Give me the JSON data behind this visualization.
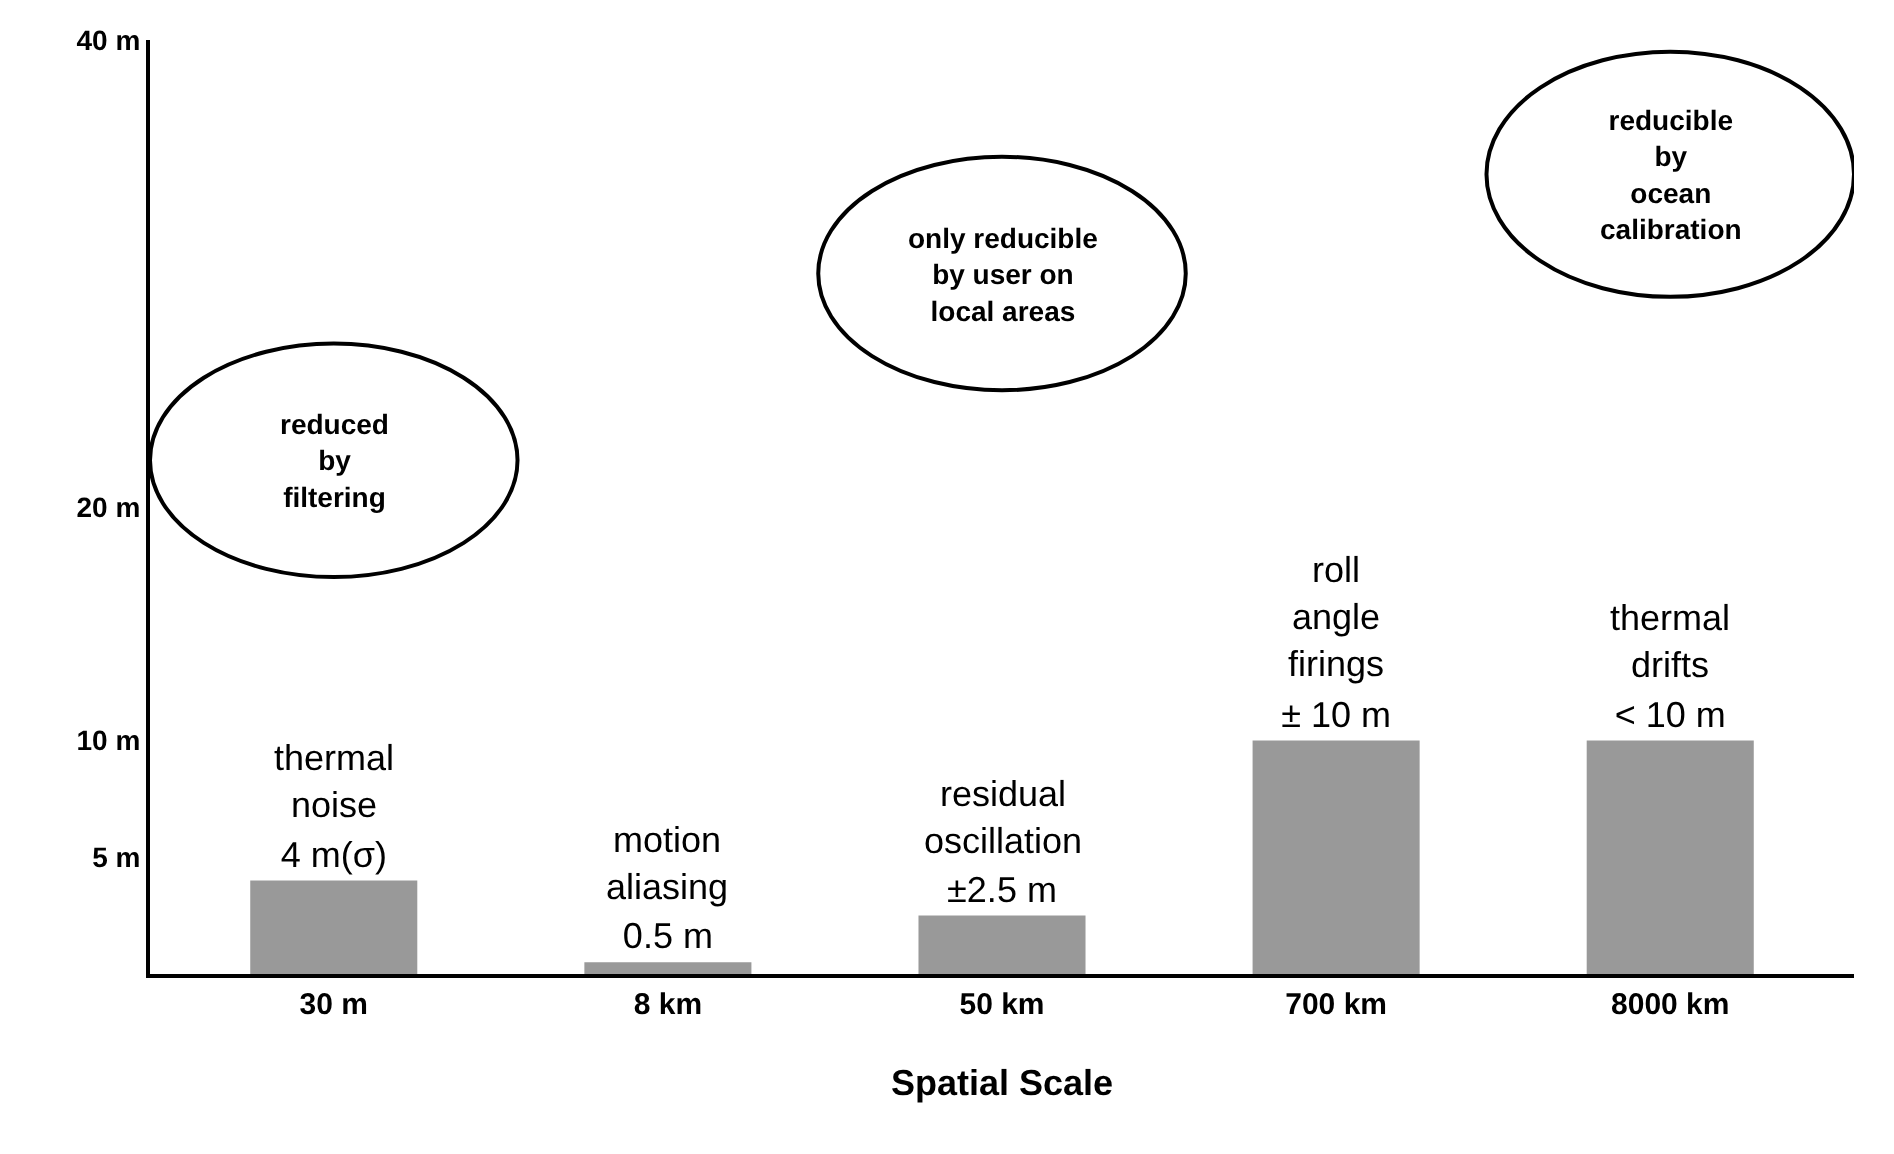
{
  "chart_data": {
    "type": "bar",
    "xlabel": "Spatial Scale",
    "categories": [
      "30 m",
      "8 km",
      "50 km",
      "700 km",
      "8000 km"
    ],
    "values": [
      4,
      0.5,
      2.5,
      10,
      10
    ],
    "value_labels": [
      "4 m(σ)",
      "0.5 m",
      "±2.5 m",
      "± 10 m",
      "< 10 m"
    ],
    "color": "#999999",
    "ylim": [
      0,
      40
    ],
    "yticks": [
      {
        "value": 5,
        "label": "5 m"
      },
      {
        "value": 10,
        "label": "10 m"
      },
      {
        "value": 20,
        "label": "20 m"
      },
      {
        "value": 40,
        "label": "40 m"
      }
    ],
    "grid": false,
    "legend": false,
    "annotations": [
      {
        "text": "thermal\nnoise",
        "x": "30 m",
        "y": 4
      },
      {
        "text": "motion\naliasing",
        "x": "8 km",
        "y": 0.5
      },
      {
        "text": "residual\noscillation",
        "x": "50 km",
        "y": 2.5
      },
      {
        "text": "roll\nangle\nfirings",
        "x": "700 km",
        "y": 10
      },
      {
        "text": "thermal\ndrifts",
        "x": "8000 km",
        "y": 10
      },
      "reduced\nby\nfiltering",
      "only reducible\nby user on\nlocal areas",
      "reducible\nby\nocean\ncalibration"
    ]
  }
}
